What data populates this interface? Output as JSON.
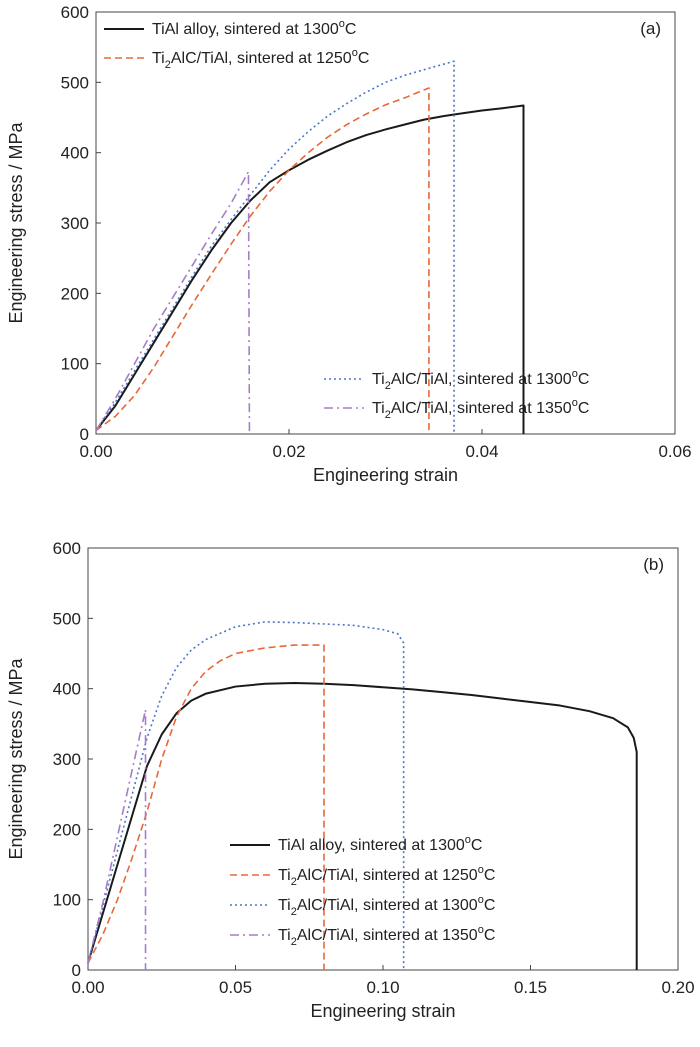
{
  "colors": {
    "tial": "#1a1a1a",
    "c1250": "#e8683a",
    "c1300": "#4a77c8",
    "c1350": "#a57ec8"
  },
  "chart_data": [
    {
      "type": "line",
      "panel_label": "(a)",
      "xlabel": "Engineering strain",
      "ylabel": "Engineering stress / MPa",
      "xlim": [
        0,
        0.06
      ],
      "ylim": [
        0,
        600
      ],
      "xticks": [
        "0.00",
        "0.02",
        "0.04",
        "0.06"
      ],
      "yticks": [
        "0",
        "100",
        "200",
        "300",
        "400",
        "500",
        "600"
      ],
      "series": [
        {
          "name": "TiAl alloy, sintered at 1300ºC",
          "label": {
            "pre": "TiAl alloy, sintered at 1300",
            "sup": "o",
            "post": "C"
          },
          "color_key": "tial",
          "dash": "solid",
          "width": 2,
          "x": [
            0,
            0.002,
            0.004,
            0.006,
            0.008,
            0.01,
            0.012,
            0.014,
            0.016,
            0.018,
            0.02,
            0.022,
            0.024,
            0.026,
            0.028,
            0.03,
            0.032,
            0.034,
            0.036,
            0.038,
            0.04,
            0.042,
            0.0443,
            0.0443
          ],
          "y": [
            5,
            40,
            85,
            130,
            175,
            220,
            262,
            300,
            332,
            358,
            375,
            390,
            403,
            415,
            425,
            433,
            440,
            447,
            452,
            456,
            460,
            463,
            467,
            0
          ]
        },
        {
          "name": "Ti2AlC/TiAl, sintered at 1250ºC",
          "label": {
            "pre": "Ti",
            "sub": "2",
            "mid": "AlC/TiAl, sintered at 1250",
            "sup": "o",
            "post": "C"
          },
          "color_key": "c1250",
          "dash": "dashed",
          "width": 1.6,
          "x": [
            0,
            0.002,
            0.004,
            0.006,
            0.008,
            0.01,
            0.012,
            0.014,
            0.016,
            0.018,
            0.02,
            0.022,
            0.024,
            0.026,
            0.028,
            0.03,
            0.032,
            0.0345,
            0.0345
          ],
          "y": [
            5,
            25,
            55,
            95,
            140,
            185,
            228,
            270,
            310,
            345,
            375,
            400,
            422,
            440,
            455,
            468,
            478,
            492,
            0
          ]
        },
        {
          "name": "Ti2AlC/TiAl, sintered at 1300ºC",
          "label": {
            "pre": "Ti",
            "sub": "2",
            "mid": "AlC/TiAl, sintered at 1300",
            "sup": "o",
            "post": "C"
          },
          "color_key": "c1300",
          "dash": "dotted",
          "width": 1.6,
          "x": [
            0,
            0.002,
            0.004,
            0.006,
            0.008,
            0.01,
            0.012,
            0.014,
            0.016,
            0.018,
            0.02,
            0.022,
            0.024,
            0.026,
            0.028,
            0.03,
            0.032,
            0.034,
            0.0371,
            0.0371
          ],
          "y": [
            5,
            45,
            90,
            135,
            180,
            225,
            268,
            305,
            340,
            375,
            405,
            430,
            452,
            470,
            486,
            500,
            510,
            518,
            530,
            0
          ]
        },
        {
          "name": "Ti2AlC/TiAl, sintered at 1350ºC",
          "label": {
            "pre": "Ti",
            "sub": "2",
            "mid": "AlC/TiAl, sintered at 1350",
            "sup": "o",
            "post": "C"
          },
          "color_key": "c1350",
          "dash": "dashdot",
          "width": 1.6,
          "x": [
            0,
            0.002,
            0.004,
            0.006,
            0.008,
            0.01,
            0.012,
            0.014,
            0.0158,
            0.0159
          ],
          "y": [
            5,
            50,
            100,
            150,
            195,
            240,
            285,
            328,
            373,
            0
          ]
        }
      ],
      "legend": [
        {
          "series": 0,
          "pos": "top-left"
        },
        {
          "series": 1,
          "pos": "top-left"
        },
        {
          "series": 2,
          "pos": "bottom-right"
        },
        {
          "series": 3,
          "pos": "bottom-right"
        }
      ]
    },
    {
      "type": "line",
      "panel_label": "(b)",
      "xlabel": "Engineering strain",
      "ylabel": "Engineering stress / MPa",
      "xlim": [
        0,
        0.2
      ],
      "ylim": [
        0,
        600
      ],
      "xticks": [
        "0.00",
        "0.05",
        "0.10",
        "0.15",
        "0.20"
      ],
      "yticks": [
        "0",
        "100",
        "200",
        "300",
        "400",
        "500",
        "600"
      ],
      "series": [
        {
          "name": "TiAl alloy, sintered at 1300ºC",
          "label": {
            "pre": "TiAl alloy, sintered at 1300",
            "sup": "o",
            "post": "C"
          },
          "color_key": "tial",
          "dash": "solid",
          "width": 2,
          "x": [
            0,
            0.005,
            0.01,
            0.015,
            0.02,
            0.025,
            0.03,
            0.035,
            0.04,
            0.05,
            0.06,
            0.07,
            0.08,
            0.09,
            0.1,
            0.11,
            0.12,
            0.13,
            0.14,
            0.15,
            0.16,
            0.17,
            0.178,
            0.183,
            0.185,
            0.186,
            0.186
          ],
          "y": [
            10,
            80,
            150,
            220,
            290,
            335,
            365,
            383,
            393,
            403,
            407,
            408,
            407,
            405,
            402,
            399,
            395,
            391,
            386,
            381,
            376,
            368,
            358,
            345,
            330,
            310,
            0
          ]
        },
        {
          "name": "Ti2AlC/TiAl, sintered at 1250ºC",
          "label": {
            "pre": "Ti",
            "sub": "2",
            "mid": "AlC/TiAl, sintered at 1250",
            "sup": "o",
            "post": "C"
          },
          "color_key": "c1250",
          "dash": "dashed",
          "width": 1.6,
          "x": [
            0,
            0.005,
            0.01,
            0.015,
            0.02,
            0.025,
            0.03,
            0.035,
            0.04,
            0.045,
            0.05,
            0.06,
            0.07,
            0.08,
            0.08
          ],
          "y": [
            10,
            50,
            100,
            160,
            225,
            300,
            360,
            400,
            425,
            440,
            450,
            458,
            462,
            462,
            0
          ]
        },
        {
          "name": "Ti2AlC/TiAl, sintered at 1300ºC",
          "label": {
            "pre": "Ti",
            "sub": "2",
            "mid": "AlC/TiAl, sintered at 1300",
            "sup": "o",
            "post": "C"
          },
          "color_key": "c1300",
          "dash": "dotted",
          "width": 1.6,
          "x": [
            0,
            0.005,
            0.01,
            0.015,
            0.02,
            0.025,
            0.03,
            0.035,
            0.04,
            0.05,
            0.06,
            0.07,
            0.08,
            0.09,
            0.1,
            0.105,
            0.107,
            0.107
          ],
          "y": [
            10,
            90,
            170,
            250,
            330,
            390,
            430,
            455,
            470,
            488,
            495,
            494,
            492,
            490,
            484,
            478,
            465,
            0
          ]
        },
        {
          "name": "Ti2AlC/TiAl, sintered at 1350ºC",
          "label": {
            "pre": "Ti",
            "sub": "2",
            "mid": "AlC/TiAl, sintered at 1350",
            "sup": "o",
            "post": "C"
          },
          "color_key": "c1350",
          "dash": "dashdot",
          "width": 1.6,
          "x": [
            0,
            0.005,
            0.01,
            0.015,
            0.0195,
            0.0195
          ],
          "y": [
            10,
            95,
            190,
            285,
            370,
            0
          ]
        }
      ],
      "legend": [
        {
          "series": 0,
          "pos": "bottom-right"
        },
        {
          "series": 1,
          "pos": "bottom-right"
        },
        {
          "series": 2,
          "pos": "bottom-right"
        },
        {
          "series": 3,
          "pos": "bottom-right"
        }
      ]
    }
  ]
}
